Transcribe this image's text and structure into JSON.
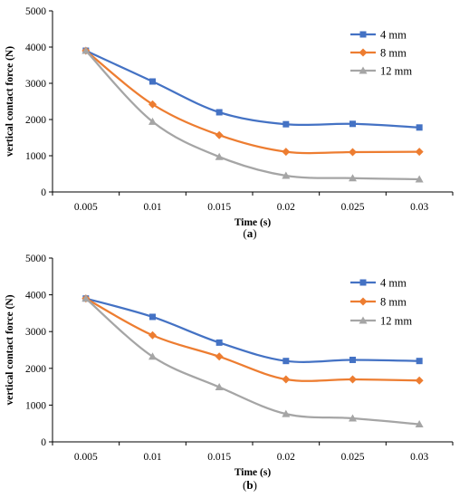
{
  "chart_data": [
    {
      "type": "line",
      "panel_label": "a",
      "title": "",
      "xlabel": "Time (s)",
      "ylabel": "vertical contact force (N)",
      "categories": [
        "0.005",
        "0.01",
        "0.015",
        "0.02",
        "0.025",
        "0.03"
      ],
      "ylim": [
        0,
        5000
      ],
      "yticks": [
        "0",
        "1000",
        "2000",
        "3000",
        "4000",
        "5000"
      ],
      "grid": false,
      "legend_position": "top-right",
      "series": [
        {
          "name": "4 mm",
          "color": "#4472C4",
          "marker": "square",
          "values": [
            3900,
            3050,
            2200,
            1870,
            1880,
            1780
          ]
        },
        {
          "name": "8 mm",
          "color": "#ED7D31",
          "marker": "diamond",
          "values": [
            3900,
            2420,
            1570,
            1110,
            1100,
            1110
          ]
        },
        {
          "name": "12 mm",
          "color": "#A5A5A5",
          "marker": "triangle",
          "values": [
            3900,
            1940,
            970,
            450,
            380,
            350
          ]
        }
      ]
    },
    {
      "type": "line",
      "panel_label": "b",
      "title": "",
      "xlabel": "Time (s)",
      "ylabel": "vertical contact force (N)",
      "categories": [
        "0.005",
        "0.01",
        "0.015",
        "0.02",
        "0.025",
        "0.03"
      ],
      "ylim": [
        0,
        5000
      ],
      "yticks": [
        "0",
        "1000",
        "2000",
        "3000",
        "4000",
        "5000"
      ],
      "grid": false,
      "legend_position": "top-right",
      "series": [
        {
          "name": "4 mm",
          "color": "#4472C4",
          "marker": "square",
          "values": [
            3900,
            3400,
            2700,
            2200,
            2230,
            2200
          ]
        },
        {
          "name": "8 mm",
          "color": "#ED7D31",
          "marker": "diamond",
          "values": [
            3900,
            2900,
            2320,
            1700,
            1700,
            1670
          ]
        },
        {
          "name": "12 mm",
          "color": "#A5A5A5",
          "marker": "triangle",
          "values": [
            3900,
            2320,
            1490,
            760,
            640,
            480
          ]
        }
      ]
    }
  ]
}
